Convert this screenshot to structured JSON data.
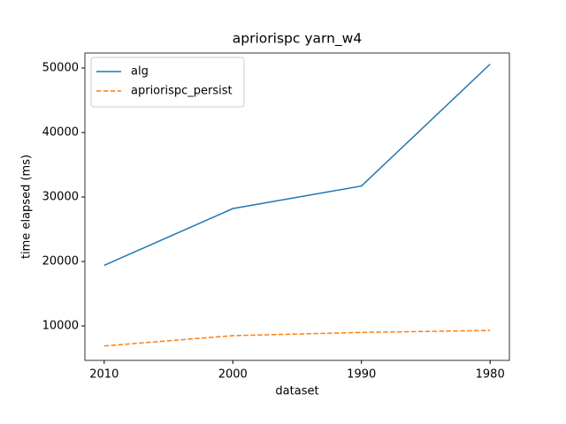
{
  "chart_data": {
    "type": "line",
    "title": "apriorispc yarn_w4",
    "x_label": "dataset",
    "y_label": "time elapsed (ms)",
    "categories": [
      "2010",
      "2000",
      "1990",
      "1980"
    ],
    "series": [
      {
        "name": "alg",
        "color": "#1f77b4",
        "dash": "solid",
        "values": [
          19400,
          28200,
          31700,
          50600
        ]
      },
      {
        "name": "apriorispc_persist",
        "color": "#ff7f0e",
        "dash": "dashed",
        "values": [
          6900,
          8500,
          9000,
          9300
        ]
      }
    ],
    "ylim": [
      4660,
      52330
    ],
    "yticks": [
      10000,
      20000,
      30000,
      40000,
      50000
    ],
    "grid": false,
    "legend": "upper left"
  }
}
